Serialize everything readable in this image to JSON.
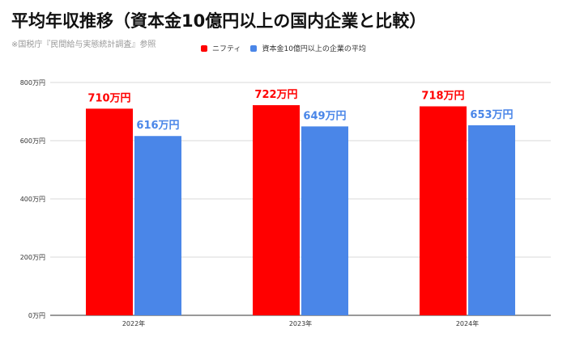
{
  "chart_data": {
    "type": "bar",
    "title": "平均年収推移（資本金10億円以上の国内企業と比較）",
    "subtitle": "※国税庁『民間給与実態統計調査』参照",
    "categories": [
      "2022年",
      "2023年",
      "2024年"
    ],
    "series": [
      {
        "name": "ニフティ",
        "color": "#ff0000",
        "values": [
          710,
          722,
          718
        ],
        "labels": [
          "710万円",
          "722万円",
          "718万円"
        ]
      },
      {
        "name": "資本金10億円以上の企業の平均",
        "color": "#4a86e8",
        "values": [
          616,
          649,
          653
        ],
        "labels": [
          "616万円",
          "649万円",
          "653万円"
        ]
      }
    ],
    "ylim": [
      0,
      800
    ],
    "yticks": [
      0,
      200,
      400,
      600,
      800
    ],
    "ytick_labels": [
      "0万円",
      "200万円",
      "400万円",
      "600万円",
      "800万円"
    ],
    "grid": true,
    "legend_position": "top"
  }
}
